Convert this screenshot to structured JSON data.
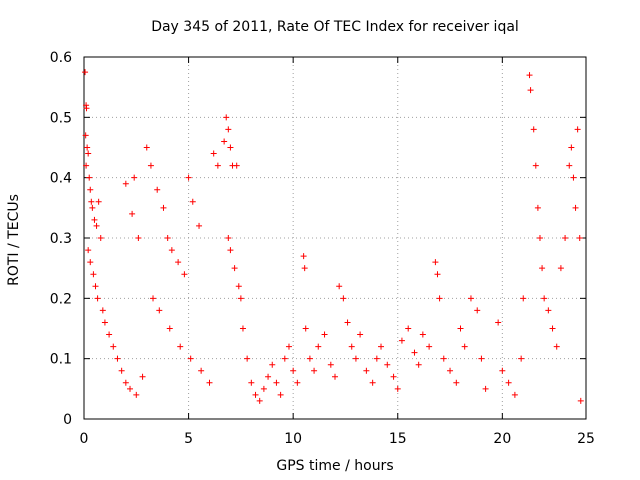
{
  "chart_data": {
    "type": "scatter",
    "title": "Day 345 of 2011, Rate Of TEC Index for receiver iqal",
    "xlabel": "GPS time / hours",
    "ylabel": "ROTI / TECUs",
    "xlim": [
      0,
      24
    ],
    "ylim": [
      0,
      0.6
    ],
    "xticks": [
      "0",
      "5",
      "10",
      "15",
      "20",
      "25"
    ],
    "yticks": [
      "0",
      "0.1",
      "0.2",
      "0.3",
      "0.4",
      "0.5",
      "0.6"
    ],
    "grid": true,
    "marker": "+",
    "series_color": "#ff0000",
    "series": [
      {
        "points": [
          [
            0.05,
            0.575
          ],
          [
            0.1,
            0.52
          ],
          [
            0.12,
            0.515
          ],
          [
            0.08,
            0.47
          ],
          [
            0.15,
            0.45
          ],
          [
            0.2,
            0.44
          ],
          [
            0.1,
            0.42
          ],
          [
            0.25,
            0.4
          ],
          [
            0.3,
            0.38
          ],
          [
            0.35,
            0.36
          ],
          [
            0.4,
            0.35
          ],
          [
            0.5,
            0.33
          ],
          [
            0.6,
            0.32
          ],
          [
            0.7,
            0.36
          ],
          [
            0.8,
            0.3
          ],
          [
            0.2,
            0.28
          ],
          [
            0.3,
            0.26
          ],
          [
            0.45,
            0.24
          ],
          [
            0.55,
            0.22
          ],
          [
            0.65,
            0.2
          ],
          [
            0.9,
            0.18
          ],
          [
            1.0,
            0.16
          ],
          [
            1.2,
            0.14
          ],
          [
            1.4,
            0.12
          ],
          [
            1.6,
            0.1
          ],
          [
            1.8,
            0.08
          ],
          [
            2.0,
            0.06
          ],
          [
            2.2,
            0.05
          ],
          [
            2.5,
            0.04
          ],
          [
            2.8,
            0.07
          ],
          [
            2.0,
            0.39
          ],
          [
            2.4,
            0.4
          ],
          [
            2.3,
            0.34
          ],
          [
            2.6,
            0.3
          ],
          [
            3.0,
            0.45
          ],
          [
            3.2,
            0.42
          ],
          [
            3.5,
            0.38
          ],
          [
            3.8,
            0.35
          ],
          [
            4.0,
            0.3
          ],
          [
            4.2,
            0.28
          ],
          [
            4.5,
            0.26
          ],
          [
            4.8,
            0.24
          ],
          [
            5.0,
            0.4
          ],
          [
            5.2,
            0.36
          ],
          [
            5.5,
            0.32
          ],
          [
            3.3,
            0.2
          ],
          [
            3.6,
            0.18
          ],
          [
            4.1,
            0.15
          ],
          [
            4.6,
            0.12
          ],
          [
            5.1,
            0.1
          ],
          [
            5.6,
            0.08
          ],
          [
            6.0,
            0.06
          ],
          [
            6.2,
            0.44
          ],
          [
            6.4,
            0.42
          ],
          [
            6.7,
            0.46
          ],
          [
            6.8,
            0.5
          ],
          [
            6.9,
            0.48
          ],
          [
            7.0,
            0.45
          ],
          [
            7.1,
            0.42
          ],
          [
            7.3,
            0.42
          ],
          [
            6.9,
            0.3
          ],
          [
            7.0,
            0.28
          ],
          [
            7.2,
            0.25
          ],
          [
            7.4,
            0.22
          ],
          [
            7.5,
            0.2
          ],
          [
            7.6,
            0.15
          ],
          [
            7.8,
            0.1
          ],
          [
            8.0,
            0.06
          ],
          [
            8.2,
            0.04
          ],
          [
            8.4,
            0.03
          ],
          [
            8.6,
            0.05
          ],
          [
            8.8,
            0.07
          ],
          [
            9.0,
            0.09
          ],
          [
            9.2,
            0.06
          ],
          [
            9.4,
            0.04
          ],
          [
            9.6,
            0.1
          ],
          [
            9.8,
            0.12
          ],
          [
            10.0,
            0.08
          ],
          [
            10.2,
            0.06
          ],
          [
            10.5,
            0.27
          ],
          [
            10.55,
            0.25
          ],
          [
            10.6,
            0.15
          ],
          [
            10.8,
            0.1
          ],
          [
            11.0,
            0.08
          ],
          [
            11.2,
            0.12
          ],
          [
            11.5,
            0.14
          ],
          [
            11.8,
            0.09
          ],
          [
            12.0,
            0.07
          ],
          [
            12.2,
            0.22
          ],
          [
            12.4,
            0.2
          ],
          [
            12.6,
            0.16
          ],
          [
            12.8,
            0.12
          ],
          [
            13.0,
            0.1
          ],
          [
            13.2,
            0.14
          ],
          [
            13.5,
            0.08
          ],
          [
            13.8,
            0.06
          ],
          [
            14.0,
            0.1
          ],
          [
            14.2,
            0.12
          ],
          [
            14.5,
            0.09
          ],
          [
            14.8,
            0.07
          ],
          [
            15.0,
            0.05
          ],
          [
            15.2,
            0.13
          ],
          [
            15.5,
            0.15
          ],
          [
            15.8,
            0.11
          ],
          [
            16.0,
            0.09
          ],
          [
            16.2,
            0.14
          ],
          [
            16.5,
            0.12
          ],
          [
            16.8,
            0.26
          ],
          [
            16.9,
            0.24
          ],
          [
            17.0,
            0.2
          ],
          [
            17.2,
            0.1
          ],
          [
            17.5,
            0.08
          ],
          [
            17.8,
            0.06
          ],
          [
            18.0,
            0.15
          ],
          [
            18.2,
            0.12
          ],
          [
            18.5,
            0.2
          ],
          [
            18.8,
            0.18
          ],
          [
            19.0,
            0.1
          ],
          [
            19.2,
            0.05
          ],
          [
            19.8,
            0.16
          ],
          [
            20.0,
            0.08
          ],
          [
            20.3,
            0.06
          ],
          [
            20.6,
            0.04
          ],
          [
            20.9,
            0.1
          ],
          [
            21.0,
            0.2
          ],
          [
            21.3,
            0.57
          ],
          [
            21.35,
            0.545
          ],
          [
            21.5,
            0.48
          ],
          [
            21.6,
            0.42
          ],
          [
            21.7,
            0.35
          ],
          [
            21.8,
            0.3
          ],
          [
            21.9,
            0.25
          ],
          [
            22.0,
            0.2
          ],
          [
            22.2,
            0.18
          ],
          [
            22.4,
            0.15
          ],
          [
            22.6,
            0.12
          ],
          [
            22.8,
            0.25
          ],
          [
            23.0,
            0.3
          ],
          [
            23.2,
            0.42
          ],
          [
            23.3,
            0.45
          ],
          [
            23.4,
            0.4
          ],
          [
            23.5,
            0.35
          ],
          [
            23.6,
            0.48
          ],
          [
            23.7,
            0.3
          ],
          [
            23.75,
            0.03
          ]
        ]
      }
    ]
  }
}
